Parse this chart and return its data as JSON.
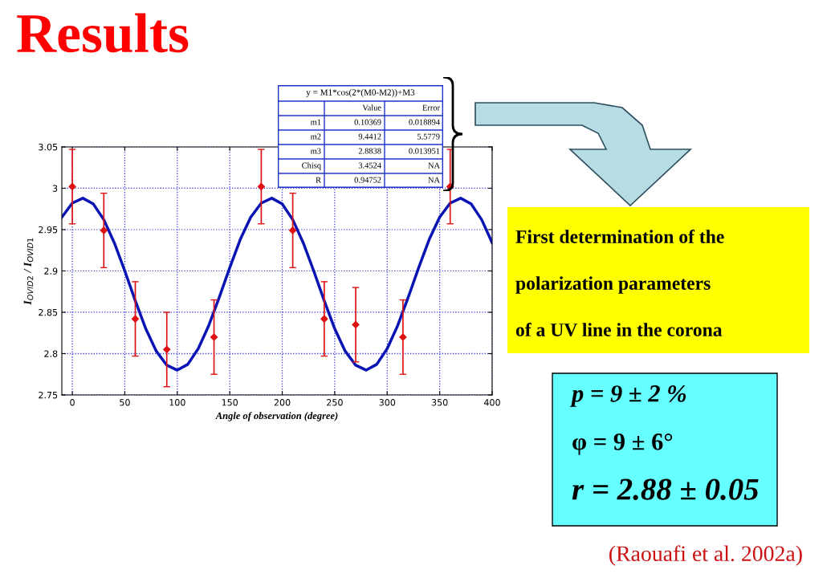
{
  "chart_data": {
    "type": "scatter",
    "title": "Results",
    "xlabel": "Angle of observation (degree)",
    "ylabel": "I$_{OVID2}$ / I$_{OVID1}$",
    "xlim": [
      -10,
      400
    ],
    "xticks": [
      0,
      50,
      100,
      150,
      200,
      250,
      300,
      350,
      400
    ],
    "ylim": [
      2.75,
      3.05
    ],
    "yticks": [
      2.75,
      2.8,
      2.85,
      2.9,
      2.95,
      3,
      3.05
    ],
    "grid": true,
    "series": [
      {
        "marker": "diamond",
        "color": "#dd1111",
        "x": [
          0,
          30,
          60,
          90,
          135,
          180,
          210,
          240,
          270,
          315,
          360
        ],
        "values": [
          3.002,
          2.949,
          2.842,
          2.805,
          2.82,
          3.002,
          2.949,
          2.842,
          2.835,
          2.82,
          3.002
        ],
        "errors": [
          0.045,
          0.045,
          0.045,
          0.045,
          0.045,
          0.045,
          0.045,
          0.045,
          0.045,
          0.045,
          0.045
        ]
      },
      {
        "type": "line",
        "color": "#0a14b4",
        "x": [
          -10,
          0,
          10,
          20,
          30,
          40,
          50,
          60,
          70,
          80,
          90,
          100,
          110,
          120,
          130,
          140,
          150,
          160,
          170,
          180,
          190,
          200,
          210,
          220,
          230,
          240,
          250,
          260,
          270,
          280,
          290,
          300,
          310,
          320,
          330,
          340,
          350,
          360,
          370,
          380,
          390,
          400
        ],
        "values": [
          2.965,
          2.982,
          2.988,
          2.981,
          2.962,
          2.934,
          2.9,
          2.864,
          2.83,
          2.803,
          2.786,
          2.78,
          2.787,
          2.806,
          2.834,
          2.868,
          2.904,
          2.938,
          2.965,
          2.982,
          2.988,
          2.981,
          2.962,
          2.934,
          2.9,
          2.864,
          2.83,
          2.803,
          2.786,
          2.78,
          2.787,
          2.806,
          2.834,
          2.868,
          2.904,
          2.938,
          2.965,
          2.982,
          2.988,
          2.981,
          2.962,
          2.934
        ]
      }
    ],
    "annotations": [
      "y = M1*cos(2*(M0-M2))+M3",
      "Value",
      "Error",
      "m1",
      "0.10369",
      "0.018894",
      "m2",
      "9.4412",
      "5.5779",
      "m3",
      "2.8838",
      "0.013951",
      "Chisq",
      "3.4524",
      "NA",
      "R",
      "0.94752",
      "NA",
      "First determination of the",
      "polarization parameters",
      "of a UV line in the corona",
      "p = 9 ± 2 %",
      "φ = 9 ± 6°",
      "r = 2.88 ± 0.05",
      "(Raouafi et al. 2002a)"
    ]
  }
}
